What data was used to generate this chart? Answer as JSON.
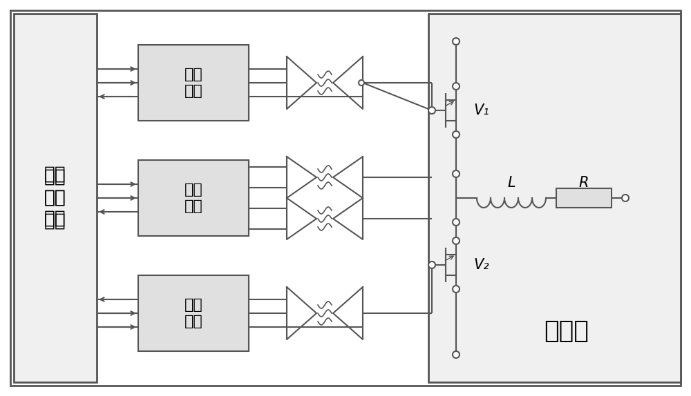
{
  "bg": "#ffffff",
  "lc": "#555555",
  "lw": 1.5,
  "box_fill": "#e8e8e8",
  "inner_box_fill": "#d8d8d8",
  "left_label": "电子\n控制\n电路",
  "main_label": "主电路",
  "box_labels": [
    "检测\n电路",
    "保护\n电路",
    "驱动\n电路"
  ],
  "V1_label": "V₁",
  "V2_label": "V₂",
  "L_label": "L",
  "R_label": "R"
}
